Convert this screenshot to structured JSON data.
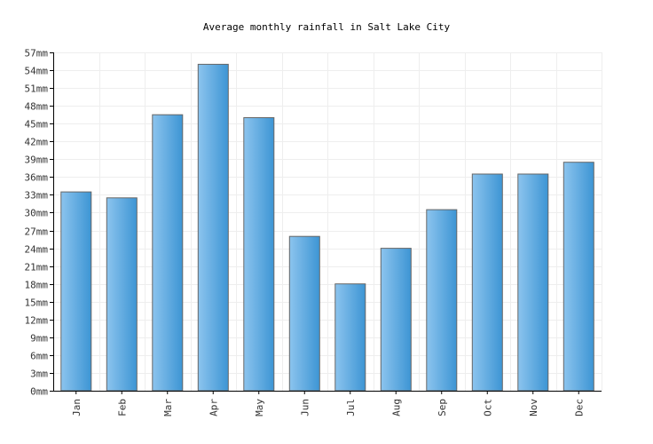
{
  "chart_data": {
    "type": "bar",
    "title": "Average monthly rainfall in Salt Lake City",
    "xlabel": "",
    "ylabel": "",
    "unit": "mm",
    "categories": [
      "Jan",
      "Feb",
      "Mar",
      "Apr",
      "May",
      "Jun",
      "Jul",
      "Aug",
      "Sep",
      "Oct",
      "Nov",
      "Dec"
    ],
    "values": [
      33.5,
      32.5,
      46.5,
      55,
      46,
      26,
      18,
      24,
      30.5,
      36.5,
      36.5,
      38.5
    ],
    "ylim": [
      0,
      57
    ],
    "yticks": [
      0,
      3,
      6,
      9,
      12,
      15,
      18,
      21,
      24,
      27,
      30,
      33,
      36,
      39,
      42,
      45,
      48,
      51,
      54,
      57
    ],
    "grid": true,
    "colors": {
      "bar_light": "#8cc4ee",
      "bar_dark": "#3d95d4",
      "bar_border": "#666666",
      "grid": "#eeeeee"
    }
  }
}
